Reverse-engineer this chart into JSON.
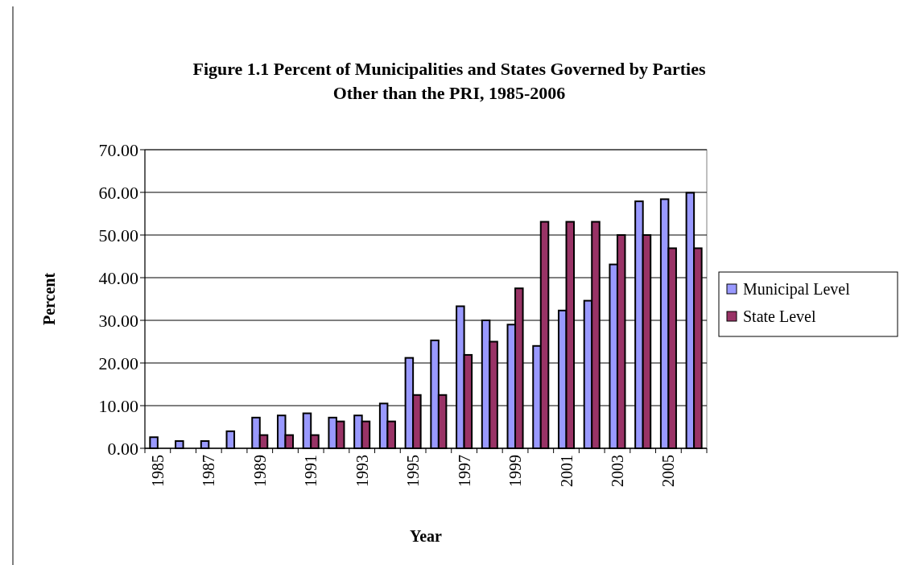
{
  "chart_data": {
    "type": "bar",
    "title": "Figure 1.1 Percent of Municipalities and States Governed by Parties Other than the PRI, 1985-2006",
    "xlabel": "Year",
    "ylabel": "Percent",
    "categories": [
      "1985",
      null,
      "1987",
      null,
      "1989",
      null,
      "1991",
      null,
      "1993",
      null,
      "1995",
      null,
      "1997",
      null,
      "1999",
      null,
      "2001",
      null,
      "2003",
      null,
      "2005",
      null
    ],
    "series": [
      {
        "name": "Municipal Level",
        "color": "#9999ff",
        "values": [
          2.6,
          1.7,
          1.7,
          4.0,
          7.2,
          7.7,
          8.2,
          7.2,
          7.7,
          10.5,
          21.2,
          25.3,
          33.3,
          30.0,
          29.0,
          24.0,
          32.3,
          34.6,
          43.1,
          57.9,
          58.4,
          59.9
        ]
      },
      {
        "name": "State Level",
        "color": "#993366",
        "values": [
          0,
          0,
          0,
          0,
          3.1,
          3.1,
          3.1,
          6.3,
          6.3,
          6.3,
          12.5,
          12.5,
          21.9,
          25.0,
          37.5,
          53.1,
          53.1,
          53.1,
          50.0,
          50.0,
          46.9,
          46.9
        ]
      }
    ],
    "ylim": [
      0,
      70
    ],
    "yticks": [
      {
        "value": 0,
        "label": "0.00"
      },
      {
        "value": 10,
        "label": "10.00"
      },
      {
        "value": 20,
        "label": "20.00"
      },
      {
        "value": 30,
        "label": "30.00"
      },
      {
        "value": 40,
        "label": "40.00"
      },
      {
        "value": 50,
        "label": "50.00"
      },
      {
        "value": 60,
        "label": "60.00"
      },
      {
        "value": 70,
        "label": "70.00"
      }
    ],
    "grid": "y",
    "legend": "right"
  }
}
